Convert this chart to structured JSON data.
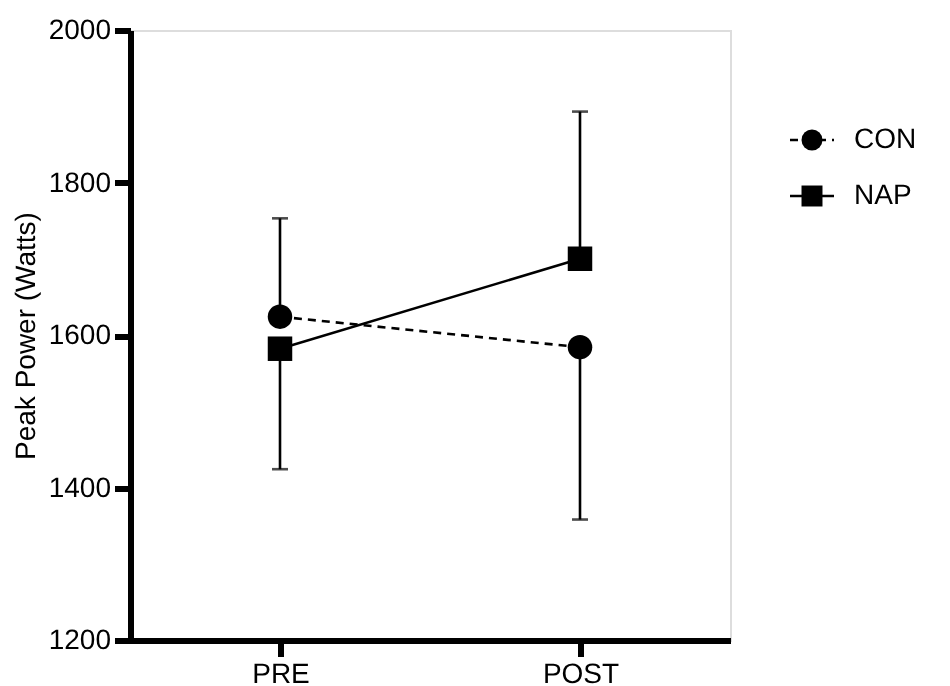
{
  "chart_data": {
    "type": "line",
    "ylabel": "Peak Power (Watts)",
    "categories": [
      "PRE",
      "POST"
    ],
    "series": [
      {
        "name": "CON",
        "color": "#000000",
        "values": [
          1624,
          1584
        ],
        "marker": "circle",
        "line_style": "dashed",
        "errors": [
          [
            1624,
            1753
          ],
          [
            1358,
            1584
          ]
        ]
      },
      {
        "name": "NAP",
        "color": "#000000",
        "values": [
          1582,
          1700
        ],
        "marker": "square",
        "line_style": "solid",
        "errors": [
          [
            1424,
            1582
          ],
          [
            1700,
            1893
          ]
        ]
      }
    ],
    "ylim": [
      1200,
      2000
    ],
    "yticks": [
      1200,
      1400,
      1600,
      1800,
      2000
    ],
    "grid": false,
    "legend": "top right"
  }
}
